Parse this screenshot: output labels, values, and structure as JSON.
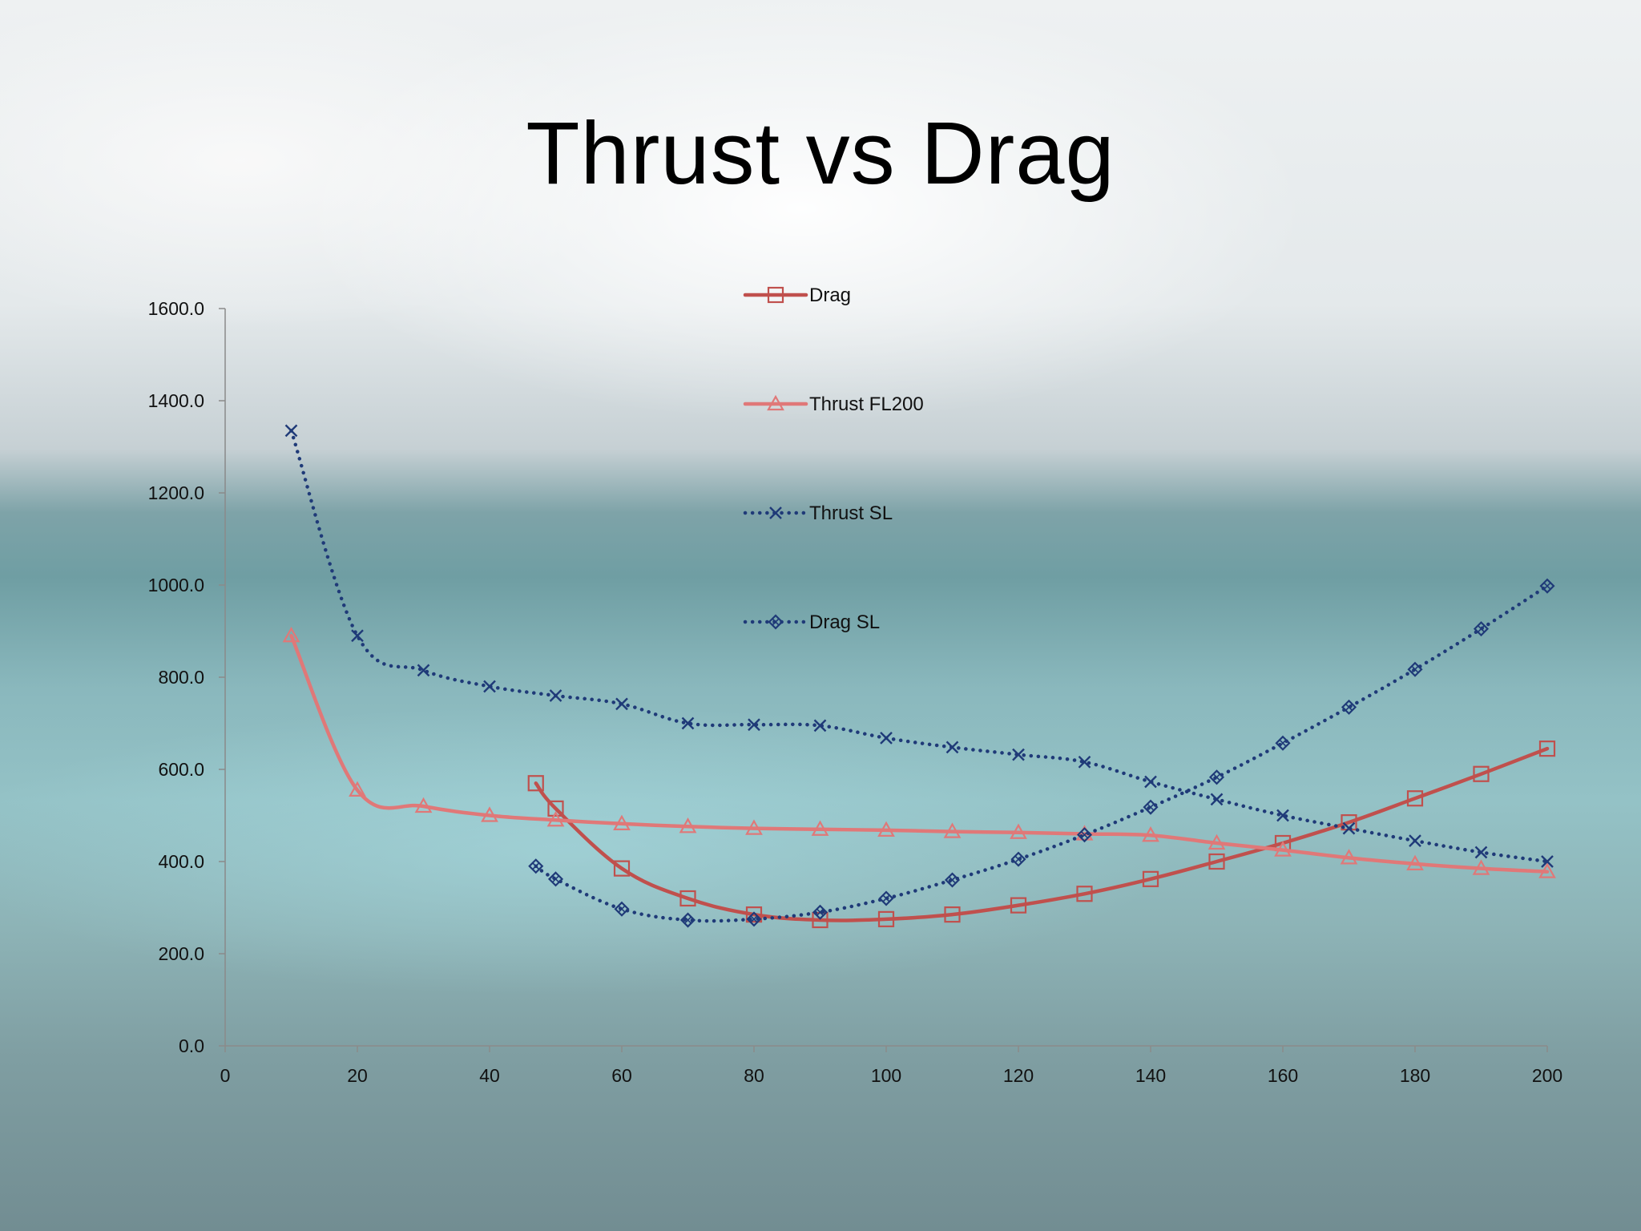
{
  "slide": {
    "title": "Thrust vs Drag"
  },
  "chart_data": {
    "type": "line",
    "title": "Thrust vs Drag",
    "xlabel": "",
    "ylabel": "",
    "xlim": [
      0,
      200
    ],
    "ylim": [
      0,
      1600
    ],
    "x_ticks": [
      0,
      20,
      40,
      60,
      80,
      100,
      120,
      140,
      160,
      180,
      200
    ],
    "y_ticks": [
      "0.0",
      "200.0",
      "400.0",
      "600.0",
      "800.0",
      "1000.0",
      "1200.0",
      "1400.0",
      "1600.0"
    ],
    "grid": false,
    "legend_position": "top-center",
    "series": [
      {
        "name": "Drag",
        "color": "#c0504d",
        "marker": "square",
        "dash": "solid",
        "x": [
          47,
          50,
          60,
          70,
          80,
          90,
          100,
          110,
          120,
          130,
          140,
          150,
          160,
          170,
          180,
          190,
          200
        ],
        "y": [
          570,
          515,
          385,
          320,
          285,
          273,
          275,
          285,
          305,
          330,
          362,
          400,
          440,
          485,
          537,
          590,
          645
        ]
      },
      {
        "name": "Thrust FL200",
        "color": "#e07878",
        "marker": "triangle",
        "dash": "solid",
        "x": [
          10,
          20,
          30,
          40,
          50,
          60,
          70,
          80,
          90,
          100,
          110,
          120,
          130,
          140,
          150,
          160,
          170,
          180,
          190,
          200
        ],
        "y": [
          890,
          555,
          520,
          500,
          490,
          482,
          476,
          472,
          470,
          468,
          465,
          463,
          460,
          457,
          440,
          425,
          408,
          395,
          385,
          378
        ]
      },
      {
        "name": "Thrust SL",
        "color": "#1f3a78",
        "marker": "x",
        "dash": "dotted",
        "x": [
          10,
          20,
          30,
          40,
          50,
          60,
          70,
          80,
          90,
          100,
          110,
          120,
          130,
          140,
          150,
          160,
          170,
          180,
          190,
          200
        ],
        "y": [
          1335,
          890,
          815,
          780,
          760,
          742,
          700,
          697,
          695,
          668,
          648,
          632,
          616,
          573,
          535,
          500,
          472,
          445,
          420,
          400
        ]
      },
      {
        "name": "Drag SL",
        "color": "#1f3a78",
        "marker": "diamond",
        "dash": "dotted",
        "x": [
          47,
          50,
          60,
          70,
          80,
          90,
          100,
          110,
          120,
          130,
          140,
          150,
          160,
          170,
          180,
          190,
          200
        ],
        "y": [
          390,
          362,
          297,
          273,
          275,
          290,
          320,
          360,
          405,
          458,
          518,
          583,
          657,
          735,
          817,
          905,
          998
        ]
      }
    ]
  }
}
